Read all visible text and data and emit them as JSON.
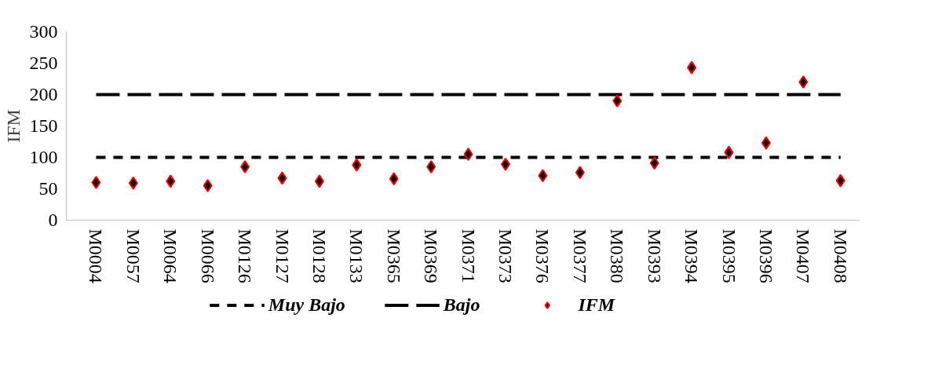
{
  "chart_data": {
    "type": "scatter",
    "ylabel": "IFM",
    "categories": [
      "M0004",
      "M0057",
      "M0064",
      "M0066",
      "M0126",
      "M0127",
      "M0128",
      "M0133",
      "M0365",
      "M0369",
      "M0371",
      "M0373",
      "M0376",
      "M0377",
      "M0380",
      "M0393",
      "M0394",
      "M0395",
      "M0396",
      "M0407",
      "M0408"
    ],
    "series": [
      {
        "name": "Muy Bajo",
        "type": "line",
        "line_style": "dashed",
        "color": "#000000",
        "values": [
          100,
          100,
          100,
          100,
          100,
          100,
          100,
          100,
          100,
          100,
          100,
          100,
          100,
          100,
          100,
          100,
          100,
          100,
          100,
          100,
          100
        ]
      },
      {
        "name": "Bajo",
        "type": "line",
        "line_style": "dashed",
        "color": "#000000",
        "values": [
          200,
          200,
          200,
          200,
          200,
          200,
          200,
          200,
          200,
          200,
          200,
          200,
          200,
          200,
          200,
          200,
          200,
          200,
          200,
          200,
          200
        ]
      },
      {
        "name": "IFM",
        "marker": "diamond",
        "color": "#000000",
        "values": [
          60,
          59,
          62,
          55,
          85,
          67,
          62,
          88,
          66,
          85,
          105,
          89,
          71,
          76,
          190,
          91,
          243,
          108,
          123,
          220,
          63
        ]
      }
    ],
    "ylim": [
      0,
      300
    ],
    "yticks": [
      0,
      50,
      100,
      150,
      200,
      250,
      300
    ],
    "grid": false,
    "legend": "bottom"
  }
}
